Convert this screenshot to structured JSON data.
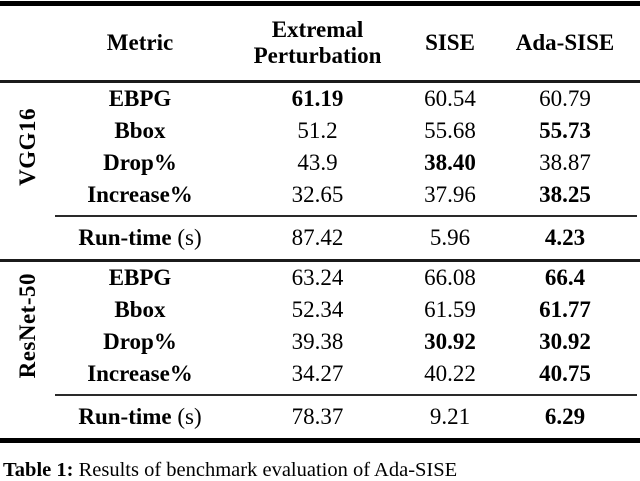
{
  "table": {
    "header": {
      "metric_label": "Metric",
      "col_ep": "Extremal Perturbation",
      "col_sise": "SISE",
      "col_ada": "Ada-SISE"
    },
    "sections": [
      {
        "model": "VGG16",
        "rows": [
          {
            "metric": "EBPG",
            "values": [
              "61.19",
              "60.54",
              "60.79"
            ]
          },
          {
            "metric": "Bbox",
            "values": [
              "51.2",
              "55.68",
              "55.73"
            ]
          },
          {
            "metric": "Drop%",
            "values": [
              "43.9",
              "38.40",
              "38.87"
            ]
          },
          {
            "metric": "Increase%",
            "values": [
              "32.65",
              "37.96",
              "38.25"
            ]
          }
        ],
        "runtime": {
          "label": "Run-time",
          "unit": "(s)",
          "values": [
            "87.42",
            "5.96",
            "4.23"
          ]
        }
      },
      {
        "model": "ResNet-50",
        "rows": [
          {
            "metric": "EBPG",
            "values": [
              "63.24",
              "66.08",
              "66.4"
            ]
          },
          {
            "metric": "Bbox",
            "values": [
              "52.34",
              "61.59",
              "61.77"
            ]
          },
          {
            "metric": "Drop%",
            "values": [
              "39.38",
              "30.92",
              "30.92"
            ]
          },
          {
            "metric": "Increase%",
            "values": [
              "34.27",
              "40.22",
              "40.75"
            ]
          }
        ],
        "runtime": {
          "label": "Run-time",
          "unit": "(s)",
          "values": [
            "78.37",
            "9.21",
            "6.29"
          ]
        }
      }
    ],
    "caption": {
      "label": "Table 1:",
      "text": "Results of benchmark evaluation of Ada-SISE"
    }
  }
}
